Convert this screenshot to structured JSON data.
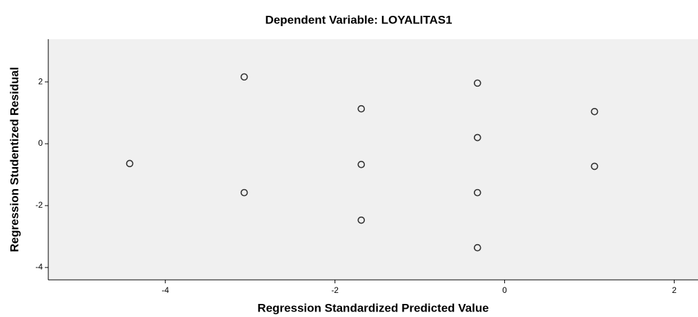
{
  "chart_data": {
    "type": "scatter",
    "title": "Dependent Variable: LOYALITAS1",
    "x_label": "Regression Standardized Predicted Value",
    "y_label": "Regression Studentized Residual",
    "x": [
      -4.42,
      -3.07,
      -3.07,
      -1.69,
      -1.69,
      -1.69,
      -0.32,
      -0.32,
      -0.32,
      -0.32,
      1.06,
      1.06
    ],
    "values": [
      -0.64,
      2.16,
      -1.58,
      1.13,
      -0.67,
      -2.47,
      1.96,
      0.2,
      -1.58,
      -3.36,
      1.04,
      -0.73
    ],
    "color": "#333333",
    "xlim": [
      -5.38,
      2.28
    ],
    "xticks": [
      -4,
      -2,
      0,
      2
    ],
    "ylim": [
      -4.4,
      3.38
    ],
    "yticks": [
      -4,
      -2,
      0,
      2
    ],
    "grid": false
  }
}
